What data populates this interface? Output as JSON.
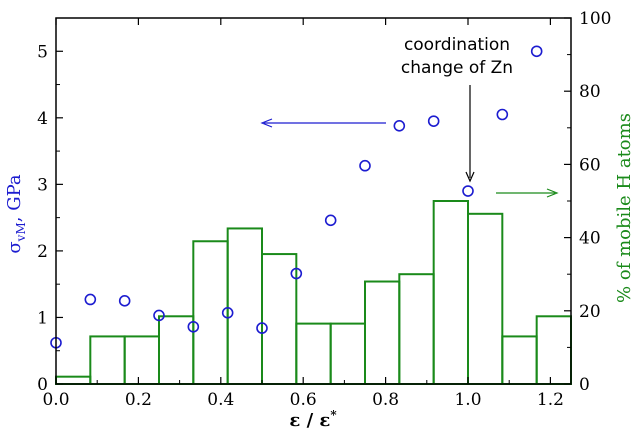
{
  "chart_data": {
    "type": "scatter+bar",
    "xlabel": "ε / ε*",
    "ylabel_left": "σvM, GPa",
    "ylabel_right": "% of mobile H atoms",
    "xlim": [
      0.0,
      1.25
    ],
    "ylim_left": [
      0,
      5.5
    ],
    "ylim_right": [
      0,
      100
    ],
    "x_ticks": [
      "0.0",
      "0.2",
      "0.4",
      "0.6",
      "0.8",
      "1.0",
      "1.2"
    ],
    "y_left_ticks": [
      "0",
      "1",
      "2",
      "3",
      "4",
      "5"
    ],
    "y_right_ticks": [
      "0",
      "20",
      "40",
      "60",
      "80",
      "100"
    ],
    "colors": {
      "scatter": "#1c1cd0",
      "bars": "#1a8a1a",
      "axes": "#000000"
    },
    "scatter": {
      "axis": "left",
      "marker": "open-circle",
      "x": [
        0.0,
        0.0833,
        0.1667,
        0.25,
        0.3333,
        0.4167,
        0.5,
        0.5833,
        0.6667,
        0.75,
        0.8333,
        0.9167,
        1.0,
        1.0833,
        1.1667
      ],
      "y": [
        0.62,
        1.27,
        1.25,
        1.03,
        0.86,
        1.07,
        0.84,
        1.66,
        2.46,
        3.28,
        3.88,
        3.95,
        2.9,
        4.05,
        5.0
      ]
    },
    "bars": {
      "axis": "right",
      "x": [
        0.0,
        0.0833,
        0.1667,
        0.25,
        0.3333,
        0.4167,
        0.5,
        0.5833,
        0.6667,
        0.75,
        0.8333,
        0.9167,
        1.0,
        1.0833,
        1.1667
      ],
      "width": 0.0833,
      "values": [
        2,
        13,
        13,
        18.5,
        39,
        42.5,
        35.5,
        16.5,
        16.5,
        28,
        30,
        50,
        46.5,
        13,
        18.5
      ]
    },
    "annotations": {
      "coordination_line1": "coordination",
      "coordination_line2": "change of Zn"
    }
  }
}
